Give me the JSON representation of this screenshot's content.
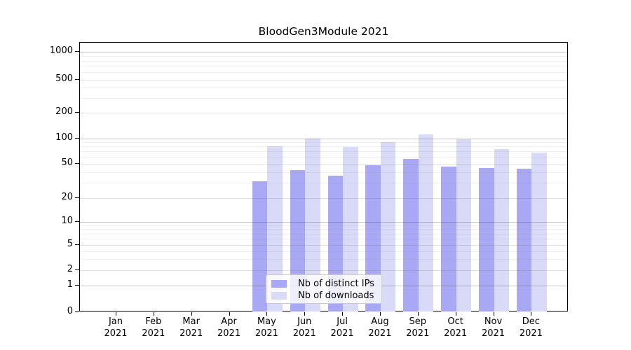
{
  "title": "BloodGen3Module 2021",
  "chart_data": {
    "type": "bar",
    "title": "BloodGen3Module 2021",
    "categories": [
      "Jan 2021",
      "Feb 2021",
      "Mar 2021",
      "Apr 2021",
      "May 2021",
      "Jun 2021",
      "Jul 2021",
      "Aug 2021",
      "Sep 2021",
      "Oct 2021",
      "Nov 2021",
      "Dec 2021"
    ],
    "series": [
      {
        "name": "Nb of distinct IPs",
        "color": "#a8a8f5",
        "values": [
          0,
          0,
          0,
          0,
          31,
          42,
          36,
          48,
          57,
          46,
          45,
          44
        ]
      },
      {
        "name": "Nb of downloads",
        "color": "#d9d9f8",
        "values": [
          0,
          0,
          0,
          0,
          81,
          99,
          79,
          91,
          112,
          98,
          75,
          68
        ]
      }
    ],
    "xlabel": "",
    "ylabel": "",
    "yscale": "symlog",
    "ylim": [
      0,
      1300
    ],
    "y_ticks": [
      0,
      1,
      2,
      5,
      10,
      20,
      50,
      100,
      200,
      500,
      1000
    ],
    "grid": "both",
    "legend_position": "lower center",
    "grid_color_major_pow10": "#c6c6c6",
    "grid_color_labeled": "#dfdfdf",
    "grid_color_minor": "#ececec"
  }
}
